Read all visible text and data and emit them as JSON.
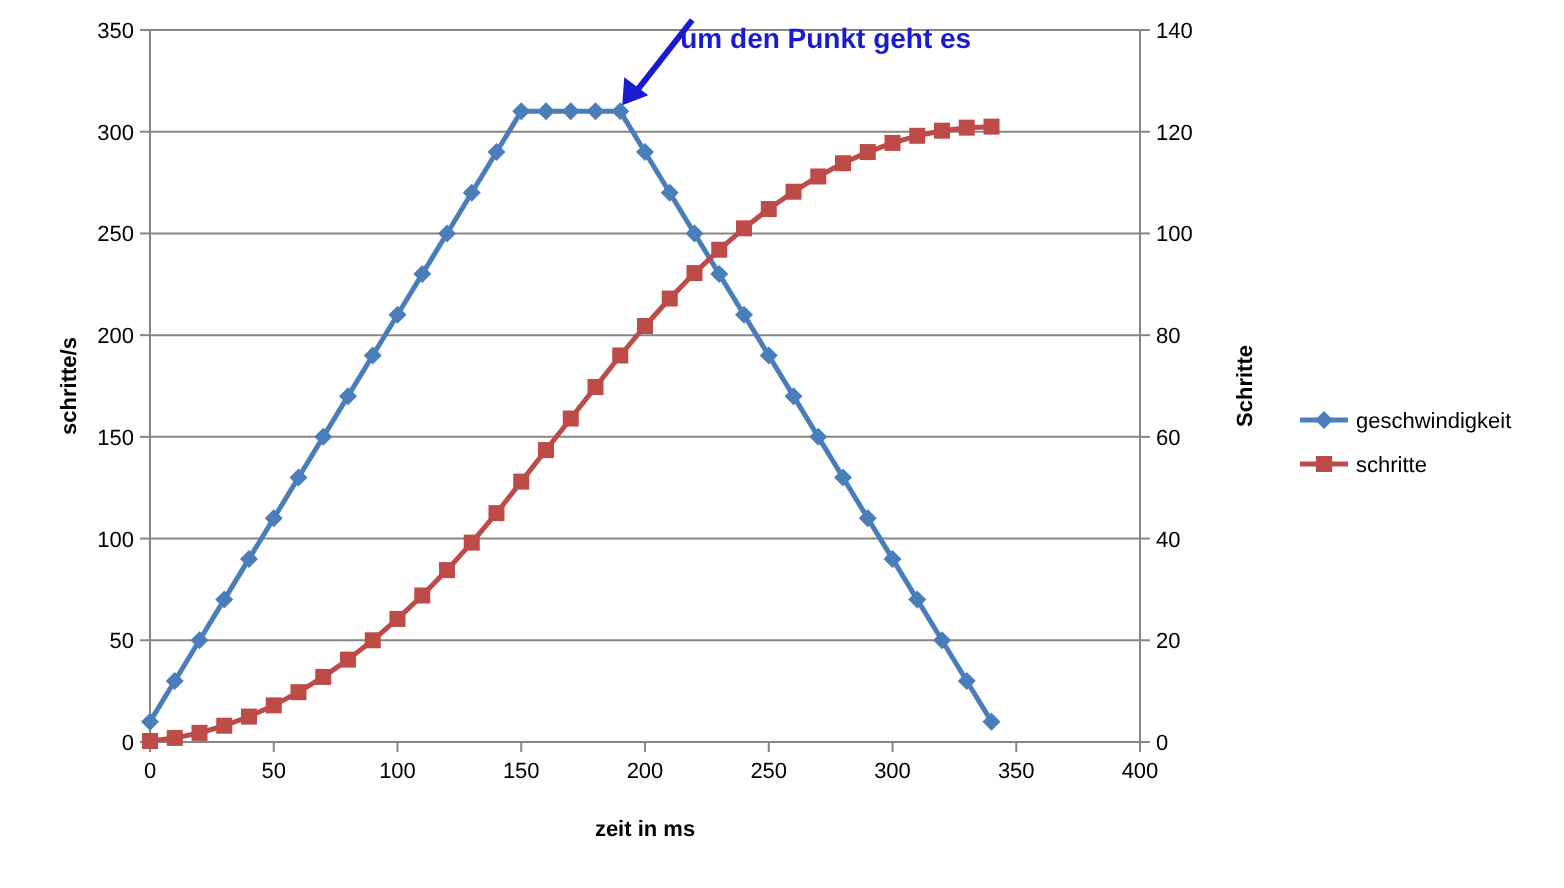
{
  "chart_data": {
    "type": "line",
    "xlabel": "zeit in ms",
    "ylabel": "schritte/s",
    "y2label": "Schritte",
    "x": [
      0,
      10,
      20,
      30,
      40,
      50,
      60,
      70,
      80,
      90,
      100,
      110,
      120,
      130,
      140,
      150,
      160,
      170,
      180,
      190,
      200,
      210,
      220,
      230,
      240,
      250,
      260,
      270,
      280,
      290,
      300,
      310,
      320,
      330,
      340
    ],
    "series": [
      {
        "name": "geschwindigkeit",
        "color": "#4a7ebb",
        "marker": "diamond",
        "values": [
          10,
          30,
          50,
          70,
          90,
          110,
          130,
          150,
          170,
          190,
          210,
          230,
          250,
          270,
          290,
          310,
          310,
          310,
          310,
          310,
          290,
          270,
          250,
          230,
          210,
          190,
          170,
          150,
          130,
          110,
          90,
          70,
          50,
          30,
          10
        ]
      },
      {
        "name": "schritte",
        "color": "#be4b48",
        "marker": "square",
        "axis": "y2",
        "values": [
          0.2,
          0.8,
          1.8,
          3.2,
          5,
          7.2,
          9.8,
          12.8,
          16.2,
          20,
          24.2,
          28.8,
          33.8,
          39.2,
          45,
          51.2,
          57.4,
          63.6,
          69.8,
          76,
          81.8,
          87.2,
          92.2,
          96.8,
          101,
          104.8,
          108.2,
          111.2,
          113.8,
          116,
          117.8,
          119.2,
          120.2,
          120.8,
          121
        ]
      }
    ],
    "xlim": [
      0,
      400
    ],
    "xticks": [
      0,
      50,
      100,
      150,
      200,
      250,
      300,
      350,
      400
    ],
    "ylim": [
      0,
      350
    ],
    "yticks": [
      0,
      50,
      100,
      150,
      200,
      250,
      300,
      350
    ],
    "y2lim": [
      0,
      140
    ],
    "y2ticks": [
      0,
      20,
      40,
      60,
      80,
      100,
      120,
      140
    ],
    "grid": "y",
    "legend": "right",
    "annotations": [
      {
        "text": "um den Punkt geht es",
        "x": 190,
        "y": 310
      }
    ]
  }
}
